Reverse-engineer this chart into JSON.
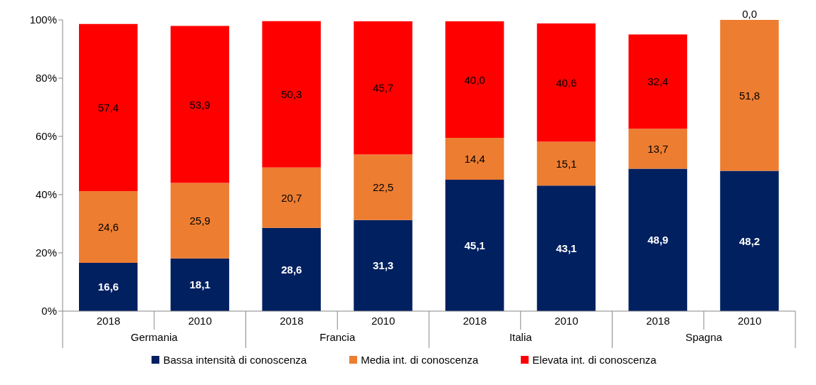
{
  "chart_data": {
    "type": "bar",
    "stacked": true,
    "categories": [
      "2018",
      "2010",
      "2018",
      "2010",
      "2018",
      "2010",
      "2018",
      "2010"
    ],
    "series": [
      {
        "name": "Bassa intensità di conoscenza",
        "color": "#002060",
        "values": [
          16.6,
          18.1,
          28.6,
          31.3,
          45.1,
          43.1,
          48.9,
          48.2
        ],
        "value_labels": [
          "16,6",
          "18,1",
          "28,6",
          "31,3",
          "45,1",
          "43,1",
          "48,9",
          "48,2"
        ]
      },
      {
        "name": "Media int. di conoscenza",
        "color": "#ed7d31",
        "values": [
          24.6,
          25.9,
          20.7,
          22.5,
          14.4,
          15.1,
          13.7,
          51.8
        ],
        "value_labels": [
          "24,6",
          "25,9",
          "20,7",
          "22,5",
          "14,4",
          "15,1",
          "13,7",
          "51,8"
        ]
      },
      {
        "name": "Elevata int. di conoscenza",
        "color": "#ff0000",
        "values": [
          57.4,
          53.9,
          50.3,
          45.7,
          40.0,
          40.6,
          32.4,
          0.0
        ],
        "value_labels": [
          "57,4",
          "53,9",
          "50,3",
          "45,7",
          "40,0",
          "40,6",
          "32,4",
          "0,0"
        ]
      }
    ],
    "ylim": [
      0,
      100
    ],
    "yticks": [
      {
        "value": 0,
        "label": "0%"
      },
      {
        "value": 20,
        "label": "20%"
      },
      {
        "value": 40,
        "label": "40%"
      },
      {
        "value": 60,
        "label": "60%"
      },
      {
        "value": 80,
        "label": "80%"
      },
      {
        "value": 100,
        "label": "100%"
      }
    ],
    "annotations": [
      "Germania",
      "Francia",
      "Italia",
      "Spagna"
    ],
    "legend": "bottom"
  }
}
